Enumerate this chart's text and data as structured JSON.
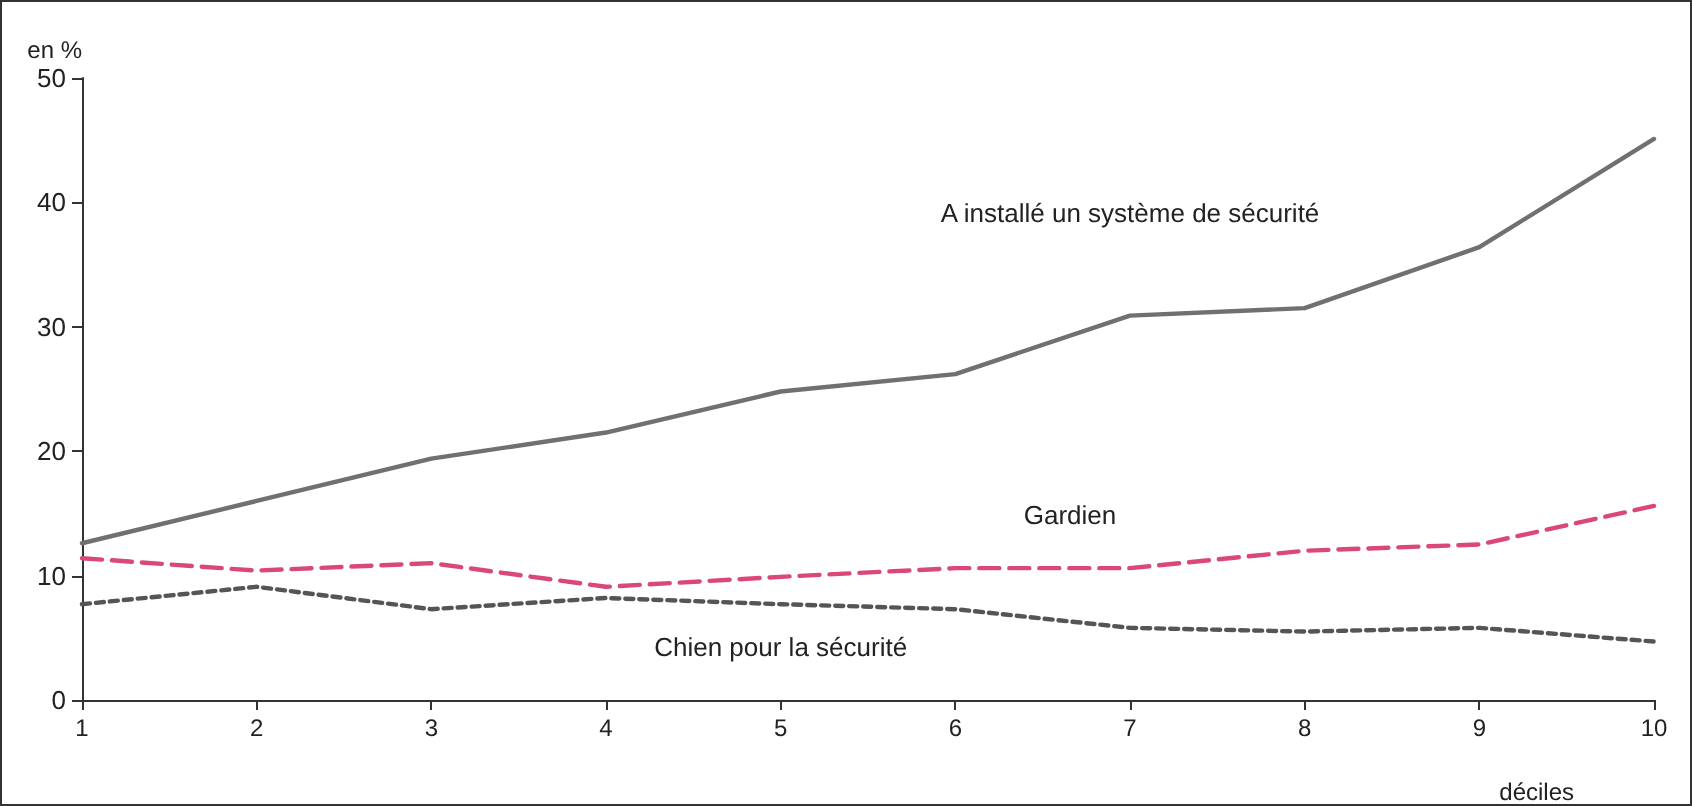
{
  "chart_data": {
    "type": "line",
    "xlabel": "déciles",
    "ylabel": "en %",
    "categories": [
      "1",
      "2",
      "3",
      "4",
      "5",
      "6",
      "7",
      "8",
      "9",
      "10"
    ],
    "series": [
      {
        "name": "A installé un système de sécurité",
        "color": "#707070",
        "line_style": "solid",
        "values": [
          12.6,
          16,
          19.4,
          21.5,
          24.8,
          26.2,
          30.9,
          31.5,
          36.4,
          45.1
        ]
      },
      {
        "name": "Gardien",
        "color": "#d9477c",
        "line_style": "dashed",
        "values": [
          11.4,
          10.4,
          11,
          9.1,
          9.9,
          10.6,
          10.6,
          12,
          12.5,
          15.6
        ]
      },
      {
        "name": "Chien pour la sécurité",
        "color": "#555555",
        "line_style": "dotted",
        "values": [
          7.7,
          9.1,
          7.3,
          8.2,
          7.7,
          7.3,
          5.8,
          5.5,
          5.8,
          4.7
        ]
      }
    ],
    "ylim": [
      0,
      50
    ],
    "yticks": [
      0,
      10,
      20,
      30,
      40,
      50
    ],
    "grid": false,
    "legend": false,
    "marker": "none"
  }
}
